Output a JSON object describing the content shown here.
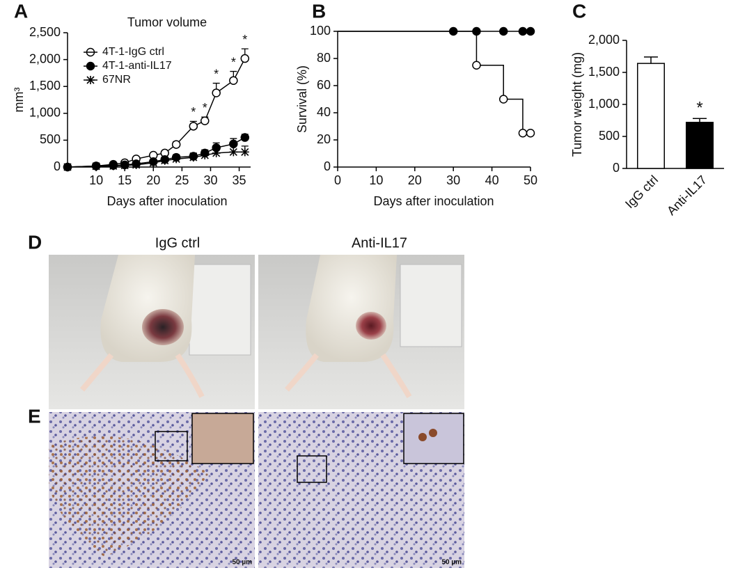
{
  "chart_data": [
    {
      "type": "line",
      "panel_label": "A",
      "title": "Tumor volume",
      "x_label": "Days after inoculation",
      "y_label": "mm³",
      "x": [
        5,
        10,
        13,
        15,
        17,
        20,
        22,
        24,
        27,
        29,
        31,
        34,
        36
      ],
      "xlim": [
        5,
        37
      ],
      "xticks": [
        10,
        15,
        20,
        25,
        30,
        35
      ],
      "ylim": [
        0,
        2500
      ],
      "yticks": [
        0,
        500,
        {
          "value": 1000,
          "label": "1,000"
        },
        {
          "value": 1500,
          "label": "1,500"
        },
        {
          "value": 2000,
          "label": "2,000"
        },
        {
          "value": 2500,
          "label": "2,500"
        }
      ],
      "series": [
        {
          "name": "4T-1-IgG ctrl",
          "color": "#000000",
          "marker": "open-circle",
          "values": [
            0,
            20,
            50,
            80,
            150,
            220,
            260,
            420,
            760,
            860,
            1380,
            1610,
            2020
          ],
          "errors": [
            0,
            10,
            20,
            20,
            30,
            30,
            40,
            50,
            90,
            70,
            180,
            170,
            180
          ]
        },
        {
          "name": "4T-1-anti-IL17",
          "color": "#000000",
          "marker": "filled-circle",
          "values": [
            0,
            20,
            30,
            40,
            60,
            100,
            140,
            180,
            200,
            260,
            360,
            430,
            550
          ],
          "errors": [
            0,
            10,
            10,
            15,
            20,
            30,
            40,
            50,
            60,
            60,
            90,
            100,
            60
          ]
        },
        {
          "name": "67NR",
          "color": "#000000",
          "marker": "asterisk",
          "values": [
            0,
            15,
            20,
            30,
            40,
            80,
            120,
            150,
            180,
            220,
            260,
            280,
            280
          ],
          "errors": [
            0,
            10,
            10,
            15,
            20,
            30,
            40,
            60,
            70,
            80,
            100,
            120,
            110
          ]
        }
      ],
      "annotations": [
        {
          "x": 27,
          "text": "*"
        },
        {
          "x": 29,
          "text": "*"
        },
        {
          "x": 31,
          "text": "*"
        },
        {
          "x": 34,
          "text": "*"
        },
        {
          "x": 36,
          "text": "*"
        }
      ]
    },
    {
      "type": "step",
      "panel_label": "B",
      "x_label": "Days after inoculation",
      "y_label": "Survival (%)",
      "xlim": [
        0,
        50
      ],
      "xticks": [
        0,
        10,
        20,
        30,
        40,
        50
      ],
      "ylim": [
        0,
        100
      ],
      "yticks": [
        0,
        20,
        40,
        60,
        80,
        100
      ],
      "series": [
        {
          "color": "#000000",
          "marker": "filled-circle",
          "x": [
            0,
            30,
            36,
            43,
            48,
            50
          ],
          "values": [
            100,
            100,
            100,
            100,
            100,
            100
          ]
        },
        {
          "color": "#000000",
          "marker": "open-circle",
          "x": [
            0,
            36,
            43,
            48,
            50
          ],
          "values": [
            100,
            75,
            50,
            25,
            25
          ]
        }
      ]
    },
    {
      "type": "bar",
      "panel_label": "C",
      "y_label": "Tumor weight (mg)",
      "categories": [
        "IgG ctrl",
        "Anti-IL17"
      ],
      "values": [
        1640,
        720
      ],
      "errors": [
        100,
        60
      ],
      "colors": [
        "#ffffff",
        "#000000"
      ],
      "ylim": [
        0,
        2000
      ],
      "yticks": [
        0,
        500,
        {
          "value": 1000,
          "label": "1,000"
        },
        {
          "value": 1500,
          "label": "1,500"
        },
        {
          "value": 2000,
          "label": "2,000"
        }
      ],
      "annotations": [
        {
          "category": 1,
          "text": "*"
        }
      ]
    }
  ],
  "panel_d": {
    "label": "D",
    "columns": [
      "IgG ctrl",
      "Anti-IL17"
    ]
  },
  "panel_e": {
    "label": "E",
    "scale_bars": [
      "50 µm",
      "50 µm"
    ]
  }
}
